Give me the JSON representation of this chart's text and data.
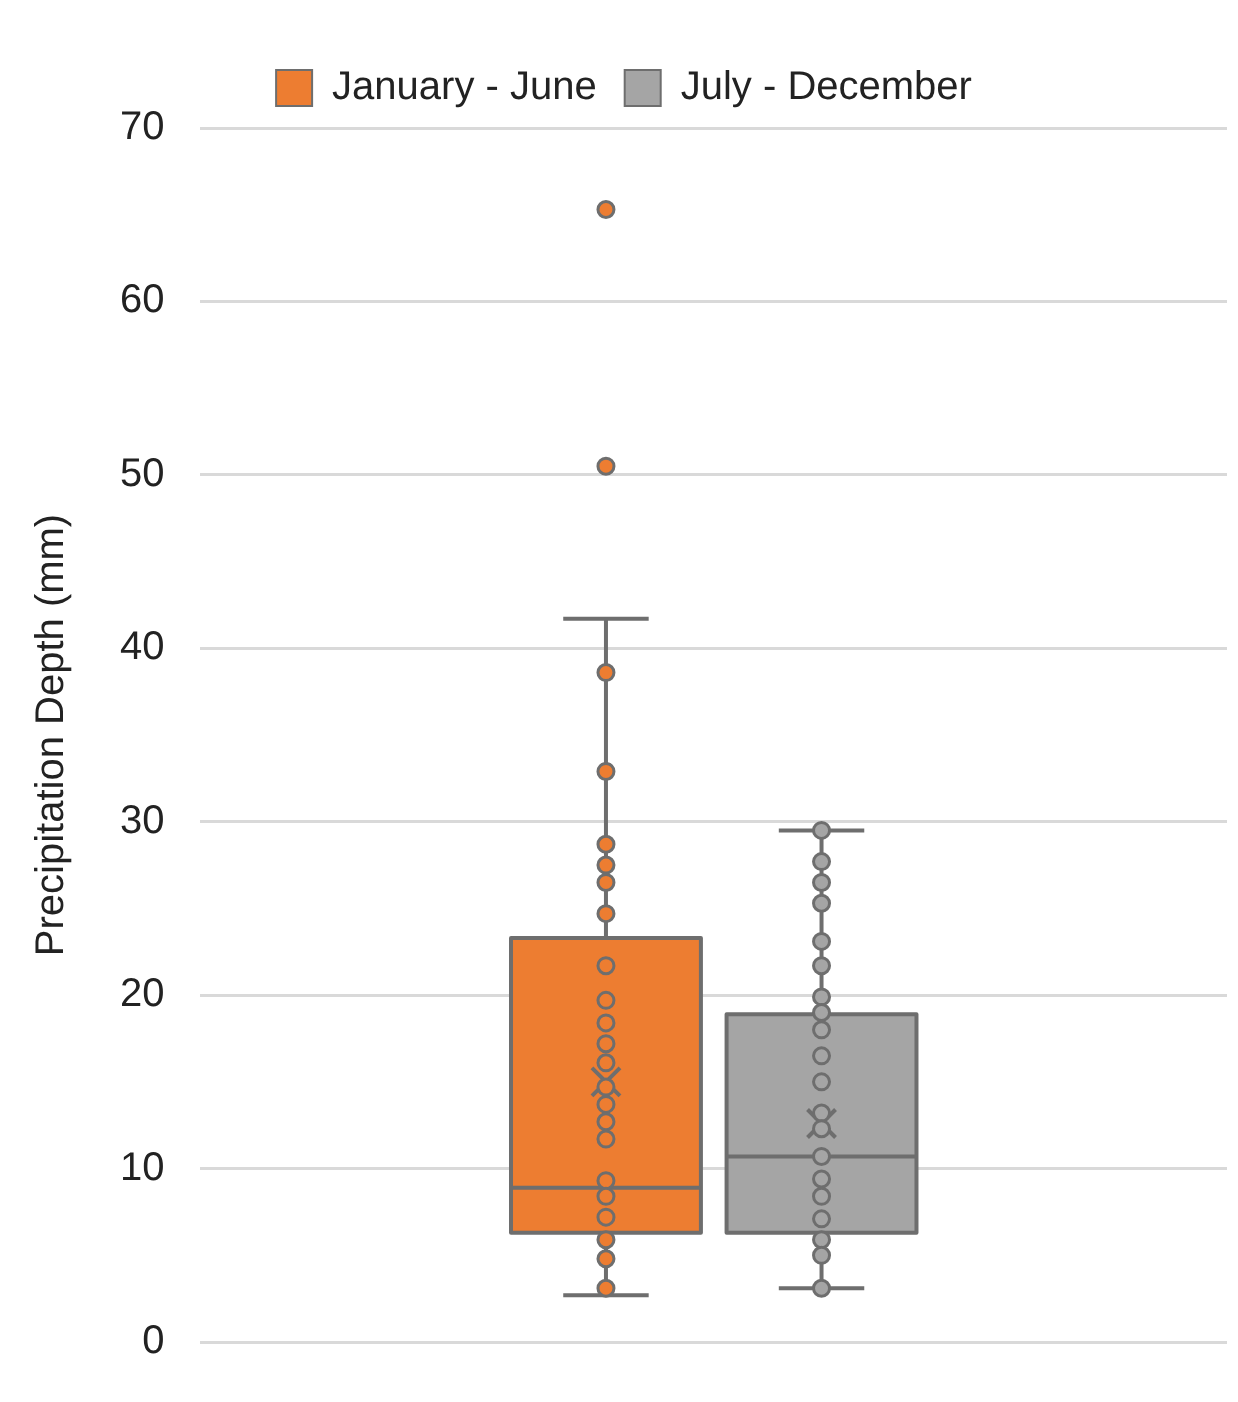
{
  "chart_data": {
    "type": "box",
    "ylabel": "Precipitation Depth (mm)",
    "categories": [
      null
    ],
    "ylim": [
      0,
      70
    ],
    "yticks": [
      0,
      10,
      20,
      30,
      40,
      50,
      60,
      70
    ],
    "grid": "y",
    "legend": "top",
    "marker": "circle",
    "series": [
      {
        "name": "January - June",
        "color": "#ed7d31",
        "boxes": [
          {
            "low": 2.7,
            "q1": 6.3,
            "median": 8.9,
            "q3": 23.3,
            "high": 41.7,
            "mean": 15.0,
            "outliers": [
              50.5,
              65.3
            ]
          }
        ]
      },
      {
        "name": "July - December",
        "color": "#a5a5a5",
        "boxes": [
          {
            "low": 3.1,
            "q1": 6.3,
            "median": 10.7,
            "q3": 18.9,
            "high": 29.5,
            "mean": 12.6
          }
        ]
      },
      {
        "type": "scatter",
        "color": "#ed7d31",
        "x": [
          null,
          null,
          null,
          null,
          null,
          null,
          null,
          null,
          null,
          null,
          null,
          null,
          null,
          null,
          null,
          null,
          null,
          null,
          null,
          null,
          null
        ],
        "values": [
          38.6,
          32.9,
          28.7,
          27.5,
          26.5,
          24.7,
          21.7,
          19.7,
          18.4,
          17.2,
          16.1,
          14.7,
          13.7,
          12.7,
          11.7,
          9.3,
          8.4,
          7.2,
          5.9,
          4.8,
          3.1
        ]
      },
      {
        "type": "scatter",
        "color": "#a5a5a5",
        "x": [
          null,
          null,
          null,
          null,
          null,
          null,
          null,
          null,
          null,
          null,
          null,
          null,
          null,
          null,
          null,
          null,
          null,
          null,
          null,
          null
        ],
        "values": [
          29.5,
          27.7,
          26.5,
          25.3,
          23.1,
          21.7,
          19.9,
          19.0,
          18.0,
          16.5,
          15.0,
          13.2,
          12.3,
          10.7,
          9.4,
          8.4,
          7.1,
          5.9,
          5.0,
          3.1
        ]
      }
    ]
  }
}
